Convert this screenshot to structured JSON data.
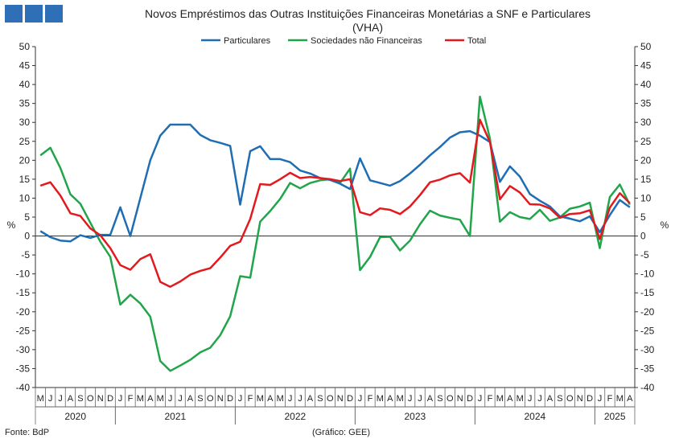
{
  "chart_data": {
    "type": "line",
    "title": "Novos Empréstimos das Outras Instituições Financeiras Monetárias a SNF e Particulares",
    "subtitle": "(VHA)",
    "ylabel": "%",
    "ylabel_right": "%",
    "ylim": [
      -40,
      50
    ],
    "ytick_step": 5,
    "grid": false,
    "legend_position": "top",
    "source": "Fonte: BdP",
    "credit": "(Gráfico: GEE)",
    "month_labels": [
      "M",
      "J",
      "J",
      "A",
      "S",
      "O",
      "N",
      "D",
      "J",
      "F",
      "M",
      "A",
      "M",
      "J",
      "J",
      "A",
      "S",
      "O",
      "N",
      "D",
      "J",
      "F",
      "M",
      "A",
      "M",
      "J",
      "J",
      "A",
      "S",
      "O",
      "N",
      "D",
      "J",
      "F",
      "M",
      "A",
      "M",
      "J",
      "J",
      "A",
      "S",
      "O",
      "N",
      "D",
      "J",
      "F",
      "M",
      "A",
      "M",
      "J",
      "J",
      "A",
      "S",
      "O",
      "N",
      "D",
      "J",
      "F",
      "M",
      "A"
    ],
    "years": [
      {
        "label": "2020",
        "start": 0,
        "end": 7
      },
      {
        "label": "2021",
        "start": 8,
        "end": 19
      },
      {
        "label": "2022",
        "start": 20,
        "end": 31
      },
      {
        "label": "2023",
        "start": 32,
        "end": 43
      },
      {
        "label": "2024",
        "start": 44,
        "end": 55
      },
      {
        "label": "2025",
        "start": 56,
        "end": 59
      }
    ],
    "x": [
      "2020-05",
      "2020-06",
      "2020-07",
      "2020-08",
      "2020-09",
      "2020-10",
      "2020-11",
      "2020-12",
      "2021-01",
      "2021-02",
      "2021-03",
      "2021-04",
      "2021-05",
      "2021-06",
      "2021-07",
      "2021-08",
      "2021-09",
      "2021-10",
      "2021-11",
      "2021-12",
      "2022-01",
      "2022-02",
      "2022-03",
      "2022-04",
      "2022-05",
      "2022-06",
      "2022-07",
      "2022-08",
      "2022-09",
      "2022-10",
      "2022-11",
      "2022-12",
      "2023-01",
      "2023-02",
      "2023-03",
      "2023-04",
      "2023-05",
      "2023-06",
      "2023-07",
      "2023-08",
      "2023-09",
      "2023-10",
      "2023-11",
      "2023-12",
      "2024-01",
      "2024-02",
      "2024-03",
      "2024-04",
      "2024-05",
      "2024-06",
      "2024-07",
      "2024-08",
      "2024-09",
      "2024-10",
      "2024-11",
      "2024-12",
      "2025-01",
      "2025-02",
      "2025-03",
      "2025-04"
    ],
    "series": [
      {
        "name": "Particulares",
        "color": "#1f6db3",
        "values": [
          1.3,
          -0.3,
          -1.2,
          -1.4,
          0.2,
          -0.5,
          0.3,
          0.3,
          7.6,
          0.0,
          10.0,
          20.0,
          26.5,
          29.4,
          29.4,
          29.4,
          26.7,
          25.3,
          24.6,
          23.8,
          8.3,
          22.4,
          23.7,
          20.3,
          20.3,
          19.5,
          17.3,
          16.5,
          15.3,
          14.8,
          13.8,
          12.4,
          20.5,
          14.7,
          14.0,
          13.3,
          14.5,
          16.5,
          18.8,
          21.3,
          23.5,
          26.0,
          27.4,
          27.7,
          26.5,
          24.8,
          14.3,
          18.4,
          15.7,
          11.1,
          9.3,
          7.8,
          5.2,
          4.6,
          3.9,
          5.2,
          1.0,
          5.5,
          9.5,
          7.6
        ]
      },
      {
        "name": "Sociedades não Financeiras",
        "color": "#21a54a",
        "values": [
          21.3,
          23.3,
          18.0,
          11.0,
          8.5,
          3.5,
          -1.5,
          -5.5,
          -18.1,
          -15.5,
          -17.8,
          -21.3,
          -33.0,
          -35.6,
          -34.2,
          -32.7,
          -30.7,
          -29.5,
          -26.2,
          -21.2,
          -10.6,
          -11.0,
          3.8,
          6.6,
          9.8,
          14.0,
          12.6,
          14.0,
          14.7,
          15.0,
          14.0,
          17.8,
          -9.0,
          -5.5,
          -0.3,
          -0.2,
          -3.8,
          -1.2,
          3.1,
          6.7,
          5.4,
          4.8,
          4.3,
          0.0,
          36.8,
          25.7,
          3.8,
          6.3,
          5.0,
          4.5,
          6.9,
          4.0,
          4.9,
          7.2,
          7.8,
          8.8,
          -3.2,
          10.3,
          13.6,
          8.3
        ]
      },
      {
        "name": "Total",
        "color": "#e3191e",
        "values": [
          13.3,
          14.2,
          10.7,
          6.0,
          5.3,
          2.0,
          0.2,
          -3.2,
          -7.7,
          -8.9,
          -6.1,
          -4.8,
          -12.1,
          -13.4,
          -12.0,
          -10.2,
          -9.2,
          -8.5,
          -5.7,
          -2.6,
          -1.5,
          4.5,
          13.7,
          13.5,
          15.0,
          16.7,
          15.3,
          15.6,
          15.3,
          15.0,
          14.5,
          15.0,
          6.3,
          5.5,
          7.3,
          6.9,
          5.8,
          7.8,
          10.8,
          14.2,
          14.9,
          16.0,
          16.6,
          14.1,
          30.7,
          24.8,
          9.7,
          13.2,
          11.5,
          8.4,
          8.3,
          7.3,
          4.8,
          5.8,
          6.0,
          6.8,
          -0.8,
          7.5,
          11.3,
          8.7
        ]
      }
    ]
  }
}
